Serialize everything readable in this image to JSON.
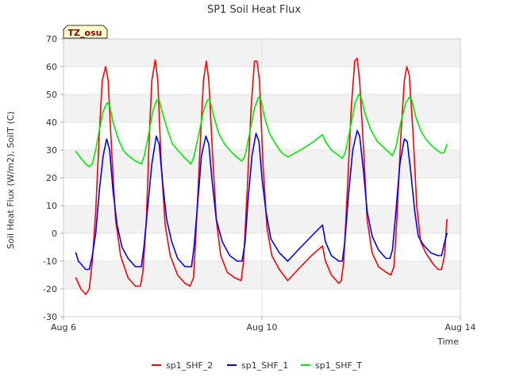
{
  "chart_data": {
    "type": "line",
    "title": "SP1 Soil Heat Flux",
    "xlabel": "Time",
    "ylabel": "Soil Heat Flux (W/m2), SoilT (C)",
    "xlim": [
      0,
      8
    ],
    "ylim": [
      -30,
      70
    ],
    "yticks": [
      -30,
      -20,
      -10,
      0,
      10,
      20,
      30,
      40,
      50,
      60,
      70
    ],
    "xticks": [
      {
        "x": 0,
        "label": "Aug 6"
      },
      {
        "x": 4,
        "label": "Aug 10"
      },
      {
        "x": 8,
        "label": "Aug 14"
      }
    ],
    "grid": true,
    "legend_position": "bottom",
    "badge": "TZ_osu",
    "series": [
      {
        "name": "sp1_SHF_2",
        "color": "#ff0000",
        "points": [
          [
            0.25,
            -16
          ],
          [
            0.35,
            -20
          ],
          [
            0.45,
            -22
          ],
          [
            0.52,
            -20
          ],
          [
            0.58,
            -10
          ],
          [
            0.65,
            8
          ],
          [
            0.72,
            35
          ],
          [
            0.78,
            55
          ],
          [
            0.85,
            60
          ],
          [
            0.9,
            55
          ],
          [
            0.97,
            30
          ],
          [
            1.05,
            5
          ],
          [
            1.15,
            -8
          ],
          [
            1.3,
            -16
          ],
          [
            1.45,
            -19
          ],
          [
            1.55,
            -19
          ],
          [
            1.6,
            -14
          ],
          [
            1.67,
            5
          ],
          [
            1.73,
            35
          ],
          [
            1.78,
            55
          ],
          [
            1.85,
            62.5
          ],
          [
            1.9,
            55
          ],
          [
            1.97,
            25
          ],
          [
            2.05,
            3
          ],
          [
            2.15,
            -8
          ],
          [
            2.3,
            -15
          ],
          [
            2.45,
            -18
          ],
          [
            2.55,
            -19
          ],
          [
            2.62,
            -16
          ],
          [
            2.67,
            0
          ],
          [
            2.75,
            30
          ],
          [
            2.82,
            55
          ],
          [
            2.88,
            62
          ],
          [
            2.93,
            55
          ],
          [
            3.0,
            30
          ],
          [
            3.08,
            5
          ],
          [
            3.17,
            -8
          ],
          [
            3.3,
            -14
          ],
          [
            3.45,
            -16
          ],
          [
            3.58,
            -17
          ],
          [
            3.63,
            -10
          ],
          [
            3.7,
            15
          ],
          [
            3.78,
            45
          ],
          [
            3.85,
            62
          ],
          [
            3.9,
            62
          ],
          [
            3.95,
            55
          ],
          [
            4.02,
            25
          ],
          [
            4.1,
            2
          ],
          [
            4.2,
            -8
          ],
          [
            4.35,
            -13
          ],
          [
            4.52,
            -17
          ],
          [
            4.78,
            -12
          ],
          [
            5.0,
            -8
          ],
          [
            5.22,
            -4.5
          ],
          [
            5.28,
            -10
          ],
          [
            5.4,
            -15
          ],
          [
            5.55,
            -18
          ],
          [
            5.6,
            -17
          ],
          [
            5.65,
            -10
          ],
          [
            5.72,
            15
          ],
          [
            5.8,
            45
          ],
          [
            5.87,
            62
          ],
          [
            5.92,
            63
          ],
          [
            5.97,
            55
          ],
          [
            6.05,
            30
          ],
          [
            6.12,
            5
          ],
          [
            6.22,
            -7
          ],
          [
            6.35,
            -12
          ],
          [
            6.5,
            -14
          ],
          [
            6.6,
            -15
          ],
          [
            6.66,
            -12
          ],
          [
            6.72,
            5
          ],
          [
            6.8,
            35
          ],
          [
            6.87,
            55
          ],
          [
            6.92,
            60
          ],
          [
            6.97,
            57
          ],
          [
            7.05,
            35
          ],
          [
            7.12,
            10
          ],
          [
            7.2,
            -3
          ],
          [
            7.3,
            -7
          ],
          [
            7.45,
            -11
          ],
          [
            7.55,
            -13
          ],
          [
            7.62,
            -13
          ],
          [
            7.68,
            -8
          ],
          [
            7.73,
            5
          ]
        ]
      },
      {
        "name": "sp1_SHF_1",
        "color": "#0000ff",
        "points": [
          [
            0.25,
            -7
          ],
          [
            0.3,
            -10
          ],
          [
            0.45,
            -13
          ],
          [
            0.52,
            -13
          ],
          [
            0.58,
            -8
          ],
          [
            0.65,
            0
          ],
          [
            0.72,
            15
          ],
          [
            0.8,
            28
          ],
          [
            0.87,
            34
          ],
          [
            0.93,
            30
          ],
          [
            1.0,
            15
          ],
          [
            1.08,
            3
          ],
          [
            1.18,
            -5
          ],
          [
            1.3,
            -9
          ],
          [
            1.45,
            -12
          ],
          [
            1.57,
            -12
          ],
          [
            1.62,
            -5
          ],
          [
            1.7,
            10
          ],
          [
            1.78,
            25
          ],
          [
            1.87,
            35
          ],
          [
            1.93,
            32
          ],
          [
            2.0,
            18
          ],
          [
            2.08,
            5
          ],
          [
            2.18,
            -3
          ],
          [
            2.3,
            -9
          ],
          [
            2.45,
            -12
          ],
          [
            2.58,
            -12
          ],
          [
            2.63,
            -5
          ],
          [
            2.7,
            10
          ],
          [
            2.78,
            28
          ],
          [
            2.87,
            35
          ],
          [
            2.93,
            32
          ],
          [
            3.0,
            18
          ],
          [
            3.08,
            5
          ],
          [
            3.2,
            -3
          ],
          [
            3.35,
            -8
          ],
          [
            3.5,
            -10
          ],
          [
            3.6,
            -10
          ],
          [
            3.66,
            -3
          ],
          [
            3.72,
            12
          ],
          [
            3.8,
            28
          ],
          [
            3.88,
            36
          ],
          [
            3.94,
            33
          ],
          [
            4.0,
            20
          ],
          [
            4.08,
            8
          ],
          [
            4.18,
            -2
          ],
          [
            4.35,
            -7
          ],
          [
            4.52,
            -10
          ],
          [
            4.78,
            -5
          ],
          [
            5.0,
            -1
          ],
          [
            5.22,
            3
          ],
          [
            5.28,
            -3
          ],
          [
            5.4,
            -8
          ],
          [
            5.55,
            -10
          ],
          [
            5.62,
            -10
          ],
          [
            5.67,
            -3
          ],
          [
            5.75,
            15
          ],
          [
            5.83,
            30
          ],
          [
            5.92,
            37
          ],
          [
            5.97,
            35
          ],
          [
            6.05,
            22
          ],
          [
            6.12,
            8
          ],
          [
            6.22,
            -1
          ],
          [
            6.35,
            -6
          ],
          [
            6.5,
            -9
          ],
          [
            6.58,
            -9
          ],
          [
            6.63,
            -6
          ],
          [
            6.7,
            8
          ],
          [
            6.78,
            25
          ],
          [
            6.87,
            34
          ],
          [
            6.93,
            33
          ],
          [
            7.0,
            22
          ],
          [
            7.08,
            8
          ],
          [
            7.15,
            -1
          ],
          [
            7.25,
            -4
          ],
          [
            7.4,
            -7
          ],
          [
            7.55,
            -8
          ],
          [
            7.62,
            -8
          ],
          [
            7.67,
            -4
          ],
          [
            7.73,
            0
          ]
        ]
      },
      {
        "name": "sp1_SHF_T",
        "color": "#00ee00",
        "points": [
          [
            0.25,
            29.5
          ],
          [
            0.35,
            27
          ],
          [
            0.45,
            25
          ],
          [
            0.52,
            24
          ],
          [
            0.58,
            25
          ],
          [
            0.65,
            30
          ],
          [
            0.72,
            37
          ],
          [
            0.8,
            44
          ],
          [
            0.88,
            47
          ],
          [
            0.93,
            46
          ],
          [
            1.0,
            40
          ],
          [
            1.1,
            34
          ],
          [
            1.2,
            30
          ],
          [
            1.3,
            28
          ],
          [
            1.45,
            26
          ],
          [
            1.57,
            25
          ],
          [
            1.63,
            28
          ],
          [
            1.72,
            36
          ],
          [
            1.8,
            44
          ],
          [
            1.88,
            48
          ],
          [
            1.93,
            48
          ],
          [
            2.0,
            43
          ],
          [
            2.1,
            37
          ],
          [
            2.2,
            32
          ],
          [
            2.3,
            30
          ],
          [
            2.45,
            27
          ],
          [
            2.57,
            25
          ],
          [
            2.62,
            27
          ],
          [
            2.72,
            35
          ],
          [
            2.82,
            44
          ],
          [
            2.9,
            48
          ],
          [
            2.95,
            48
          ],
          [
            3.03,
            42
          ],
          [
            3.13,
            36
          ],
          [
            3.25,
            32
          ],
          [
            3.4,
            29
          ],
          [
            3.52,
            27
          ],
          [
            3.6,
            26
          ],
          [
            3.66,
            28
          ],
          [
            3.75,
            36
          ],
          [
            3.85,
            45
          ],
          [
            3.93,
            49
          ],
          [
            3.98,
            48
          ],
          [
            4.05,
            42
          ],
          [
            4.15,
            36
          ],
          [
            4.28,
            32
          ],
          [
            4.4,
            29
          ],
          [
            4.52,
            27.5
          ],
          [
            4.78,
            30
          ],
          [
            5.0,
            32.5
          ],
          [
            5.22,
            35.5
          ],
          [
            5.28,
            33
          ],
          [
            5.4,
            30
          ],
          [
            5.55,
            28
          ],
          [
            5.62,
            27
          ],
          [
            5.68,
            29
          ],
          [
            5.78,
            38
          ],
          [
            5.88,
            47
          ],
          [
            5.95,
            50
          ],
          [
            6.0,
            49
          ],
          [
            6.08,
            43
          ],
          [
            6.2,
            37
          ],
          [
            6.33,
            33
          ],
          [
            6.45,
            31
          ],
          [
            6.57,
            29
          ],
          [
            6.63,
            28
          ],
          [
            6.7,
            31
          ],
          [
            6.8,
            40
          ],
          [
            6.9,
            47
          ],
          [
            6.97,
            49
          ],
          [
            7.02,
            48
          ],
          [
            7.1,
            42
          ],
          [
            7.2,
            37
          ],
          [
            7.3,
            34
          ],
          [
            7.45,
            31
          ],
          [
            7.6,
            29
          ],
          [
            7.67,
            29
          ],
          [
            7.73,
            32
          ]
        ]
      }
    ]
  }
}
